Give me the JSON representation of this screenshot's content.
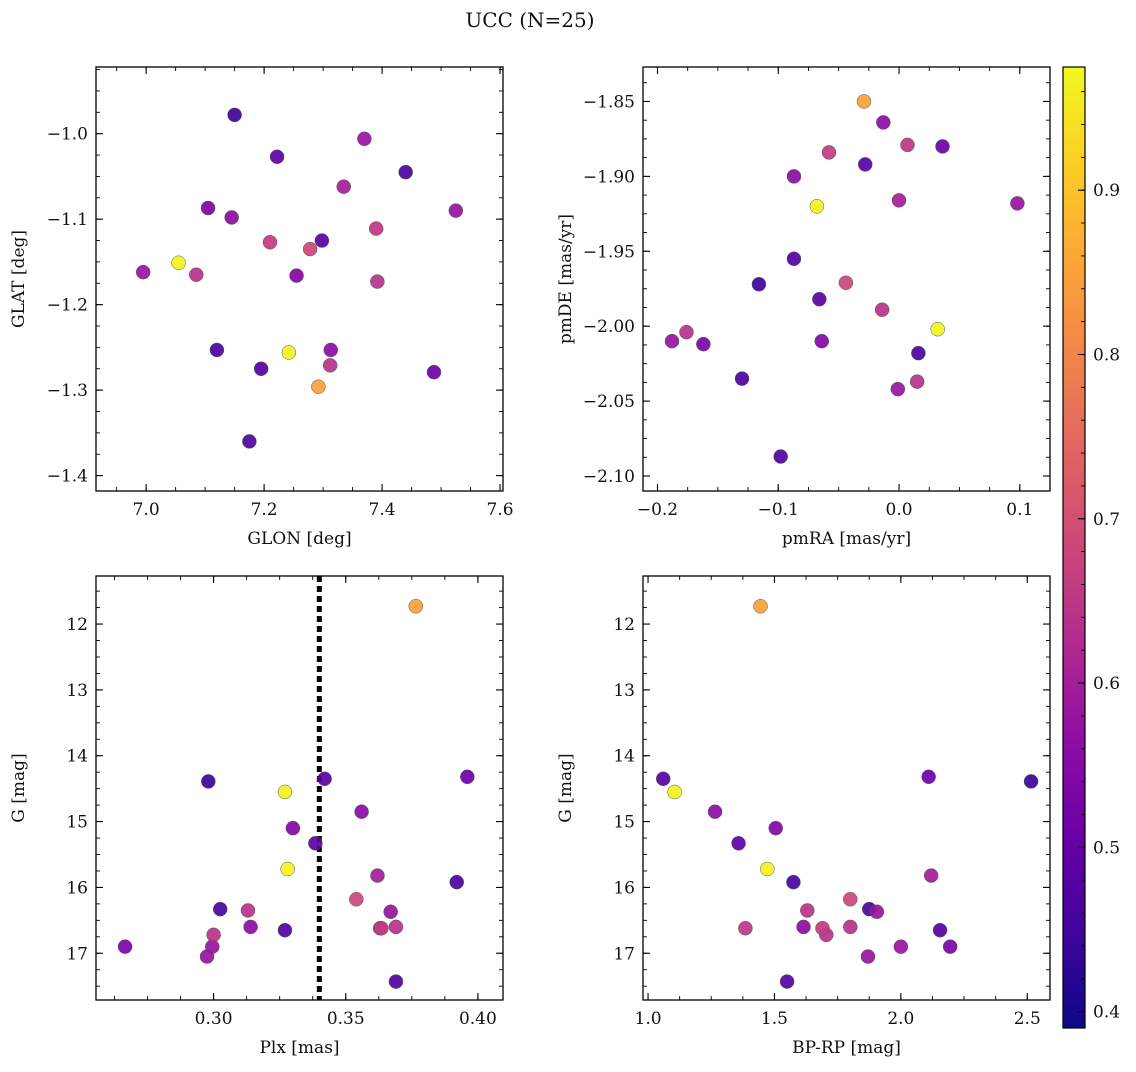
{
  "chart_data": {
    "title": "UCC (N=25)",
    "colorbar": {
      "range": [
        0.39,
        0.975
      ],
      "ticks": [
        "0.4",
        "0.5",
        "0.6",
        "0.7",
        "0.8",
        "0.9"
      ],
      "colormap": "plasma"
    },
    "stars": [
      {
        "glon": 6.995,
        "glat": -1.162,
        "pmra": -0.188,
        "pmde": -2.01,
        "plx": 0.2975,
        "g": 17.05,
        "bprp": 1.87,
        "prob": 0.58
      },
      {
        "glon": 7.055,
        "glat": -1.151,
        "pmra": 0.032,
        "pmde": -2.002,
        "plx": 0.328,
        "g": 15.72,
        "bprp": 1.472,
        "prob": 0.968
      },
      {
        "glon": 7.085,
        "glat": -1.165,
        "pmra": -0.176,
        "pmde": -2.004,
        "plx": 0.3,
        "g": 16.72,
        "bprp": 1.705,
        "prob": 0.64
      },
      {
        "glon": 7.105,
        "glat": -1.087,
        "pmra": -0.162,
        "pmde": -2.012,
        "plx": 0.2665,
        "g": 16.9,
        "bprp": 2.195,
        "prob": 0.53
      },
      {
        "glon": 7.12,
        "glat": -1.253,
        "pmra": -0.13,
        "pmde": -2.035,
        "plx": 0.3025,
        "g": 16.33,
        "bprp": 1.875,
        "prob": 0.46
      },
      {
        "glon": 7.145,
        "glat": -1.098,
        "pmra": -0.087,
        "pmde": -1.9,
        "plx": 0.314,
        "g": 16.6,
        "bprp": 1.615,
        "prob": 0.56
      },
      {
        "glon": 7.15,
        "glat": -0.978,
        "pmra": -0.116,
        "pmde": -1.972,
        "plx": 0.298,
        "g": 14.39,
        "bprp": 2.515,
        "prob": 0.44
      },
      {
        "glon": 7.175,
        "glat": -1.36,
        "pmra": -0.098,
        "pmde": -2.087,
        "plx": 0.369,
        "g": 17.43,
        "bprp": 1.55,
        "prob": 0.47
      },
      {
        "glon": 7.195,
        "glat": -1.275,
        "pmra": -0.087,
        "pmde": -1.955,
        "plx": 0.327,
        "g": 16.65,
        "bprp": 2.155,
        "prob": 0.475
      },
      {
        "glon": 7.21,
        "glat": -1.127,
        "pmra": -0.058,
        "pmde": -1.884,
        "plx": 0.3635,
        "g": 16.62,
        "bprp": 1.69,
        "prob": 0.66
      },
      {
        "glon": 7.222,
        "glat": -1.027,
        "pmra": -0.066,
        "pmde": -1.982,
        "plx": 0.3385,
        "g": 15.33,
        "bprp": 1.358,
        "prob": 0.49
      },
      {
        "glon": 7.242,
        "glat": -1.256,
        "pmra": -0.068,
        "pmde": -1.92,
        "plx": 0.327,
        "g": 14.55,
        "bprp": 1.105,
        "prob": 0.965
      },
      {
        "glon": 7.255,
        "glat": -1.166,
        "pmra": -0.064,
        "pmde": -2.01,
        "plx": 0.33,
        "g": 15.1,
        "bprp": 1.505,
        "prob": 0.545
      },
      {
        "glon": 7.278,
        "glat": -1.135,
        "pmra": -0.044,
        "pmde": -1.971,
        "plx": 0.354,
        "g": 16.18,
        "bprp": 1.8,
        "prob": 0.68
      },
      {
        "glon": 7.292,
        "glat": -1.296,
        "pmra": -0.029,
        "pmde": -1.85,
        "plx": 0.3765,
        "g": 11.73,
        "bprp": 1.445,
        "prob": 0.85
      },
      {
        "glon": 7.298,
        "glat": -1.125,
        "pmra": -0.028,
        "pmde": -1.892,
        "plx": 0.342,
        "g": 14.35,
        "bprp": 1.06,
        "prob": 0.48
      },
      {
        "glon": 7.312,
        "glat": -1.271,
        "pmra": -0.014,
        "pmde": -1.989,
        "plx": 0.313,
        "g": 16.35,
        "bprp": 1.63,
        "prob": 0.64
      },
      {
        "glon": 7.313,
        "glat": -1.253,
        "pmra": -0.013,
        "pmde": -1.864,
        "plx": 0.356,
        "g": 14.85,
        "bprp": 1.265,
        "prob": 0.56
      },
      {
        "glon": 7.335,
        "glat": -1.062,
        "pmra": 0.0,
        "pmde": -1.916,
        "plx": 0.362,
        "g": 15.82,
        "bprp": 2.12,
        "prob": 0.6
      },
      {
        "glon": 7.37,
        "glat": -1.006,
        "pmra": -0.001,
        "pmde": -2.042,
        "plx": 0.367,
        "g": 16.37,
        "bprp": 1.905,
        "prob": 0.58
      },
      {
        "glon": 7.39,
        "glat": -1.111,
        "pmra": 0.007,
        "pmde": -1.879,
        "plx": 0.363,
        "g": 16.62,
        "bprp": 1.385,
        "prob": 0.65
      },
      {
        "glon": 7.392,
        "glat": -1.173,
        "pmra": 0.015,
        "pmde": -2.037,
        "plx": 0.369,
        "g": 16.6,
        "bprp": 1.8,
        "prob": 0.64
      },
      {
        "glon": 7.44,
        "glat": -1.045,
        "pmra": 0.016,
        "pmde": -2.018,
        "plx": 0.392,
        "g": 15.92,
        "bprp": 1.575,
        "prob": 0.46
      },
      {
        "glon": 7.488,
        "glat": -1.279,
        "pmra": 0.036,
        "pmde": -1.88,
        "plx": 0.396,
        "g": 14.32,
        "bprp": 2.11,
        "prob": 0.51
      },
      {
        "glon": 7.525,
        "glat": -1.09,
        "pmra": 0.098,
        "pmde": -1.918,
        "plx": 0.2995,
        "g": 16.9,
        "bprp": 2.0,
        "prob": 0.58
      }
    ],
    "panels": [
      {
        "type": "scatter",
        "xkey": "glon",
        "ykey": "glat",
        "xlabel": "GLON [deg]",
        "ylabel": "GLAT [deg]",
        "xlim": [
          6.915,
          7.605
        ],
        "ylim": [
          -1.418,
          -0.922
        ],
        "invert_y": false,
        "xticks": [
          7.0,
          7.2,
          7.4,
          7.6
        ],
        "xtick_labels": [
          "7.0",
          "7.2",
          "7.4",
          "7.6"
        ],
        "yticks": [
          -1.4,
          -1.3,
          -1.2,
          -1.1,
          -1.0
        ],
        "ytick_labels": [
          "−1.4",
          "−1.3",
          "−1.2",
          "−1.1",
          "−1.0"
        ]
      },
      {
        "type": "scatter",
        "xkey": "pmra",
        "ykey": "pmde",
        "xlabel": "pmRA [mas/yr]",
        "ylabel": "pmDE [mas/yr]",
        "xlim": [
          -0.212,
          0.125
        ],
        "ylim": [
          -2.11,
          -1.827
        ],
        "invert_y": false,
        "xticks": [
          -0.2,
          -0.1,
          0.0,
          0.1
        ],
        "xtick_labels": [
          "−0.2",
          "−0.1",
          "0.0",
          "0.1"
        ],
        "yticks": [
          -2.1,
          -2.05,
          -2.0,
          -1.95,
          -1.9,
          -1.85
        ],
        "ytick_labels": [
          "−2.10",
          "−2.05",
          "−2.00",
          "−1.95",
          "−1.90",
          "−1.85"
        ]
      },
      {
        "type": "scatter",
        "xkey": "plx",
        "ykey": "g",
        "xlabel": "Plx [mas]",
        "ylabel": "G [mag]",
        "xlim": [
          0.2555,
          0.4095
        ],
        "ylim": [
          17.71,
          11.27
        ],
        "invert_y": true,
        "xticks": [
          0.3,
          0.35,
          0.4
        ],
        "xtick_labels": [
          "0.30",
          "0.35",
          "0.40"
        ],
        "yticks": [
          12,
          13,
          14,
          15,
          16,
          17
        ],
        "ytick_labels": [
          "12",
          "13",
          "14",
          "15",
          "16",
          "17"
        ],
        "vline": 0.34
      },
      {
        "type": "scatter",
        "xkey": "bprp",
        "ykey": "g",
        "xlabel": "BP-RP [mag]",
        "ylabel": "G [mag]",
        "xlim": [
          0.98,
          2.59
        ],
        "ylim": [
          17.71,
          11.27
        ],
        "invert_y": true,
        "xticks": [
          1.0,
          1.5,
          2.0,
          2.5
        ],
        "xtick_labels": [
          "1.0",
          "1.5",
          "2.0",
          "2.5"
        ],
        "yticks": [
          12,
          13,
          14,
          15,
          16,
          17
        ],
        "ytick_labels": [
          "12",
          "13",
          "14",
          "15",
          "16",
          "17"
        ]
      }
    ]
  }
}
